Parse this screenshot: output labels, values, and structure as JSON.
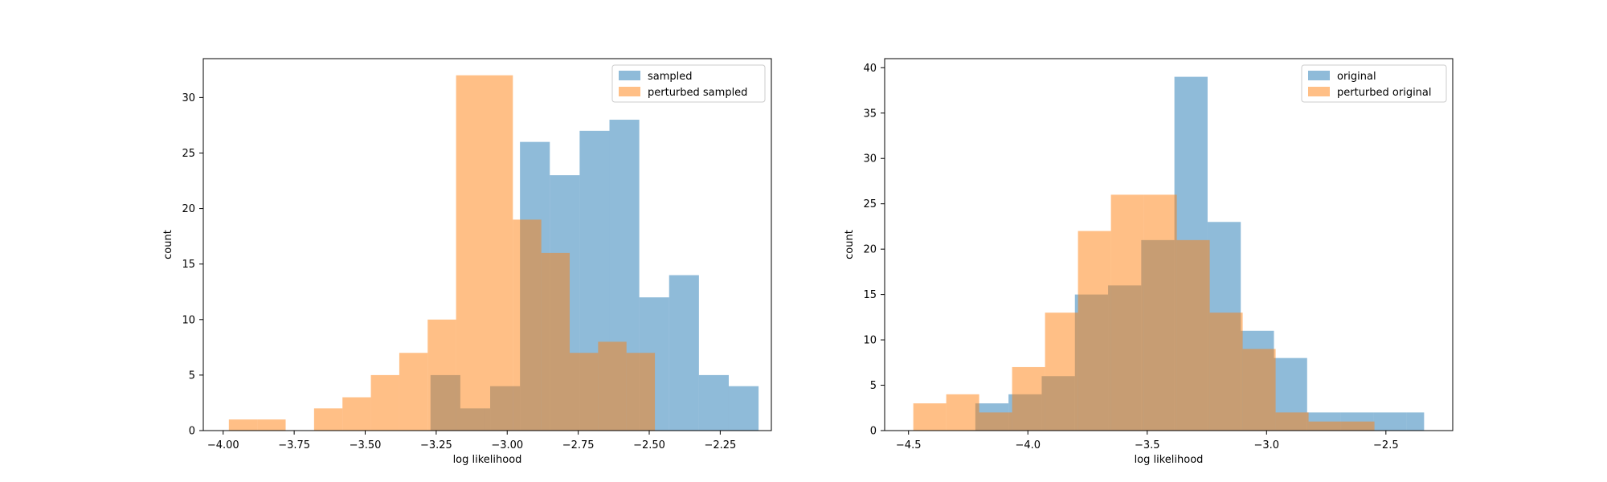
{
  "chart_data": [
    {
      "type": "bar",
      "title": "",
      "xlabel": "log likelihood",
      "ylabel": "count",
      "xlim": [
        -4.07,
        -2.07
      ],
      "ylim": [
        0,
        33.5
      ],
      "xticks": [
        -4.0,
        -3.75,
        -3.5,
        -3.25,
        -3.0,
        -2.75,
        -2.5,
        -2.25
      ],
      "xtick_labels": [
        "−4.00",
        "−3.75",
        "−3.50",
        "−3.25",
        "−3.00",
        "−2.75",
        "−2.50",
        "−2.25"
      ],
      "yticks": [
        0,
        5,
        10,
        15,
        20,
        25,
        30
      ],
      "ytick_labels": [
        "0",
        "5",
        "10",
        "15",
        "20",
        "25",
        "30"
      ],
      "grid": false,
      "legend": "top-right",
      "series": [
        {
          "name": "sampled",
          "color": "#1f77b4",
          "opacity": 0.5,
          "bin_edges": [
            -3.27,
            -3.165,
            -3.06,
            -2.955,
            -2.85,
            -2.745,
            -2.64,
            -2.535,
            -2.43,
            -2.325,
            -2.22,
            -2.115
          ],
          "values": [
            5,
            2,
            4,
            26,
            23,
            27,
            28,
            12,
            14,
            5,
            4
          ]
        },
        {
          "name": "perturbed sampled",
          "color": "#ff7f0e",
          "opacity": 0.5,
          "bin_edges": [
            -3.98,
            -3.88,
            -3.78,
            -3.68,
            -3.58,
            -3.48,
            -3.38,
            -3.28,
            -3.18,
            -3.08,
            -2.98,
            -2.88,
            -2.78,
            -2.68,
            -2.58,
            -2.48
          ],
          "values": [
            1,
            1,
            0,
            2,
            3,
            5,
            7,
            10,
            32,
            32,
            19,
            16,
            7,
            8,
            7
          ]
        }
      ]
    },
    {
      "type": "bar",
      "title": "",
      "xlabel": "log likelihood",
      "ylabel": "count",
      "xlim": [
        -4.6,
        -2.22
      ],
      "ylim": [
        0,
        41
      ],
      "xticks": [
        -4.5,
        -4.0,
        -3.5,
        -3.0,
        -2.5
      ],
      "xtick_labels": [
        "−4.5",
        "−4.0",
        "−3.5",
        "−3.0",
        "−2.5"
      ],
      "yticks": [
        0,
        5,
        10,
        15,
        20,
        25,
        30,
        35,
        40
      ],
      "ytick_labels": [
        "0",
        "5",
        "10",
        "15",
        "20",
        "25",
        "30",
        "35",
        "40"
      ],
      "grid": false,
      "legend": "top-right",
      "series": [
        {
          "name": "original",
          "color": "#1f77b4",
          "opacity": 0.5,
          "bin_edges": [
            -4.22,
            -4.081,
            -3.942,
            -3.803,
            -3.664,
            -3.525,
            -3.386,
            -3.247,
            -3.108,
            -2.969,
            -2.83,
            -2.691,
            -2.552,
            -2.413,
            -2.34
          ],
          "values": [
            3,
            4,
            6,
            15,
            16,
            21,
            39,
            23,
            11,
            8,
            2,
            2,
            2,
            2
          ]
        },
        {
          "name": "perturbed original",
          "color": "#ff7f0e",
          "opacity": 0.5,
          "bin_edges": [
            -4.48,
            -4.342,
            -4.204,
            -4.066,
            -3.928,
            -3.79,
            -3.652,
            -3.514,
            -3.376,
            -3.238,
            -3.1,
            -2.962,
            -2.824,
            -2.686,
            -2.548
          ],
          "values": [
            3,
            4,
            2,
            7,
            13,
            22,
            26,
            26,
            21,
            13,
            9,
            2,
            1,
            1
          ]
        }
      ]
    }
  ]
}
